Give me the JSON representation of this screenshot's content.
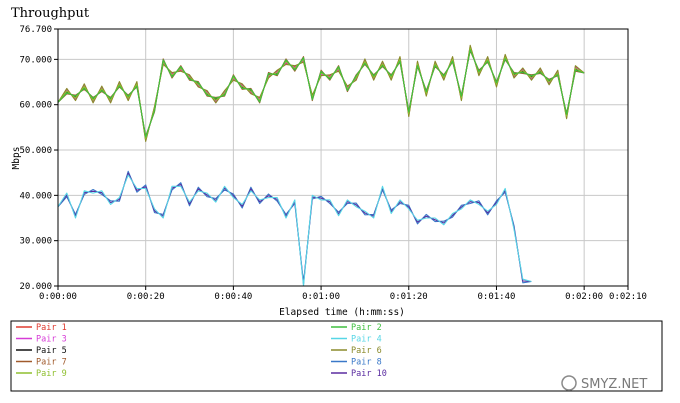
{
  "chart_data": {
    "type": "line",
    "title": "Throughput",
    "xlabel": "Elapsed time (h:mm:ss)",
    "ylabel": "Mbps",
    "xlim": [
      0,
      130
    ],
    "ylim": [
      20,
      76.7
    ],
    "x_ticks": [
      {
        "v": 0,
        "label": "0:00:00"
      },
      {
        "v": 20,
        "label": "0:00:20"
      },
      {
        "v": 40,
        "label": "0:00:40"
      },
      {
        "v": 60,
        "label": "0:01:00"
      },
      {
        "v": 80,
        "label": "0:01:20"
      },
      {
        "v": 100,
        "label": "0:01:40"
      },
      {
        "v": 120,
        "label": "0:02:00"
      },
      {
        "v": 130,
        "label": "0:02:10"
      }
    ],
    "y_ticks": [
      {
        "v": 20,
        "label": "20.000"
      },
      {
        "v": 30,
        "label": "30.000"
      },
      {
        "v": 40,
        "label": "40.000"
      },
      {
        "v": 50,
        "label": "50.000"
      },
      {
        "v": 60,
        "label": "60.000"
      },
      {
        "v": 70,
        "label": "70.000"
      },
      {
        "v": 76.7,
        "label": "76.700"
      }
    ],
    "grid": true,
    "legend_position": "bottom",
    "x": [
      0,
      2,
      4,
      6,
      8,
      10,
      12,
      14,
      16,
      18,
      20,
      22,
      24,
      26,
      28,
      30,
      32,
      34,
      36,
      38,
      40,
      42,
      44,
      46,
      48,
      50,
      52,
      54,
      56,
      58,
      60,
      62,
      64,
      66,
      68,
      70,
      72,
      74,
      76,
      78,
      80,
      82,
      84,
      86,
      88,
      90,
      92,
      94,
      96,
      98,
      100,
      102,
      104,
      106,
      108,
      110,
      112,
      114,
      116,
      118,
      120
    ],
    "base_upper": [
      60.5,
      63,
      61.5,
      64,
      61,
      63.5,
      61,
      64.5,
      61.5,
      64.5,
      52.5,
      59,
      69.5,
      66.5,
      68,
      66,
      64.5,
      62.5,
      61,
      62.5,
      66,
      64,
      63,
      61,
      66.5,
      67,
      69.5,
      68,
      70,
      61.5,
      67,
      66,
      68,
      63.5,
      66,
      69.5,
      66,
      69,
      66,
      70,
      58,
      69,
      62.5,
      69,
      66,
      70,
      61.5,
      72.5,
      67,
      70,
      64.5,
      70.5,
      66.5,
      67.5,
      66,
      67.5,
      65,
      67,
      57.5,
      68,
      67
    ],
    "base_lower": [
      37.5,
      40,
      35.5,
      40.5,
      41,
      40.5,
      38.5,
      39,
      45,
      41,
      42,
      36.5,
      35.5,
      41.5,
      42.5,
      38,
      41.5,
      40,
      39,
      41.5,
      40,
      37.5,
      41.5,
      38.5,
      40,
      39,
      35.5,
      38.5,
      20.5,
      39.5,
      39.5,
      38.5,
      36,
      38.5,
      38,
      36,
      35.5,
      41.5,
      36.5,
      38.5,
      37.5,
      34,
      35.5,
      34.5,
      34,
      35.5,
      37.5,
      38.5,
      38.5,
      36,
      38.5,
      41,
      33,
      21,
      21
    ],
    "series": [
      {
        "name": "Pair 1",
        "color": "#e03c31",
        "group": "upper",
        "offset": 0.4
      },
      {
        "name": "Pair 2",
        "color": "#3fbf3f",
        "group": "upper",
        "offset": -0.4
      },
      {
        "name": "Pair 3",
        "color": "#d63cd6",
        "group": "upper",
        "offset": 0.2
      },
      {
        "name": "Pair 4",
        "color": "#56d6e6",
        "group": "lower",
        "offset": 0.5
      },
      {
        "name": "Pair 5",
        "color": "#111111",
        "group": "upper",
        "offset": -0.2
      },
      {
        "name": "Pair 6",
        "color": "#8a8a2a",
        "group": "upper",
        "offset": 0.6
      },
      {
        "name": "Pair 7",
        "color": "#a05a2c",
        "group": "upper",
        "offset": -0.6
      },
      {
        "name": "Pair 8",
        "color": "#3a78c8",
        "group": "lower",
        "offset": -0.3
      },
      {
        "name": "Pair 9",
        "color": "#8fbf2f",
        "group": "upper",
        "offset": 0.0
      },
      {
        "name": "Pair 10",
        "color": "#5a2ca0",
        "group": "lower",
        "offset": 0.1
      }
    ]
  },
  "watermark": {
    "text": "SMYZ.NET"
  }
}
